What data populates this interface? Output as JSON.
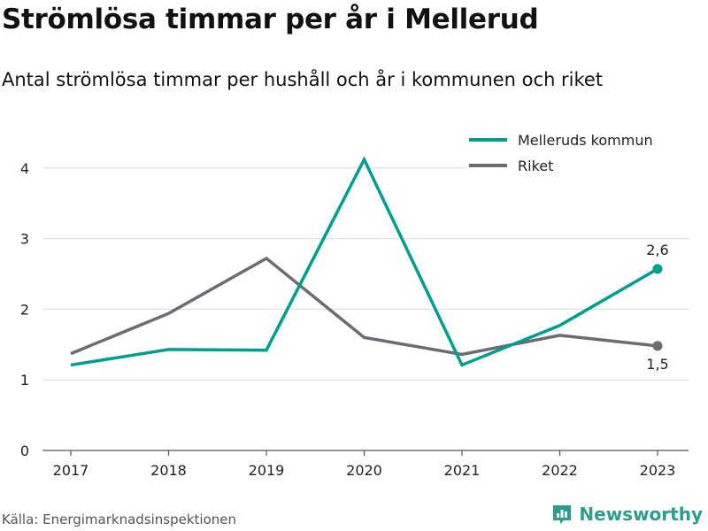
{
  "header": {
    "title": "Strömlösa timmar per år i Mellerud",
    "subtitle": "Antal strömlösa timmar per hushåll och år i kommunen och riket"
  },
  "footer": {
    "source": "Källa: Energimarknadsinspektionen",
    "brand": "Newsworthy",
    "brand_icon": "bar-chart-logo-icon"
  },
  "colors": {
    "kommun": "#009e8f",
    "riket": "#6b6b73",
    "grid": "#d9d9d9",
    "axis": "#555555",
    "brand": "#2a9d8f"
  },
  "chart_data": {
    "type": "line",
    "x": [
      "2017",
      "2018",
      "2019",
      "2020",
      "2021",
      "2022",
      "2023"
    ],
    "series": [
      {
        "name": "Melleruds kommun",
        "values": [
          1.21,
          1.43,
          1.42,
          4.12,
          1.21,
          1.77,
          2.57
        ]
      },
      {
        "name": "Riket",
        "values": [
          1.37,
          1.94,
          2.72,
          1.6,
          1.36,
          1.63,
          1.48
        ]
      }
    ],
    "yticks": [
      "0",
      "1",
      "2",
      "3",
      "4"
    ],
    "ylim": [
      0,
      4.3
    ],
    "grid": true,
    "legend": "top-right",
    "end_labels": [
      "2,6",
      "1,5"
    ]
  }
}
